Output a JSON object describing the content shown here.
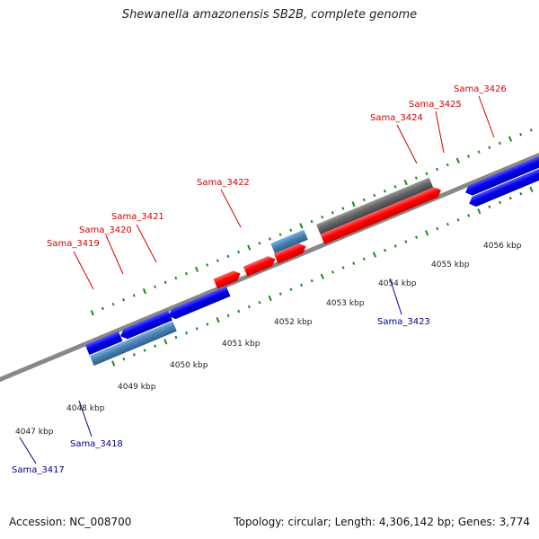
{
  "title": "Shewanella amazonensis SB2B, complete genome",
  "footer": {
    "accession": "Accession: NC_008700",
    "summary": "Topology: circular; Length: 4,306,142 bp; Genes: 3,774"
  },
  "colors": {
    "forward_cds": "#ff0000",
    "reverse_cds": "#0000ee",
    "trna": "#4682b4",
    "gray_feature": "#666666",
    "rrna": "#33cc33",
    "backbone": "#888888",
    "ticks": "#1a8a1a",
    "forward_label": "#d40000",
    "reverse_label": "#00008b"
  },
  "scale_labels": [
    "4047 kbp",
    "4048 kbp",
    "4049 kbp",
    "4050 kbp",
    "4051 kbp",
    "4052 kbp",
    "4053 kbp",
    "4054 kbp",
    "4055 kbp",
    "4056 kbp"
  ],
  "forward_labels": [
    "Sama_3419",
    "Sama_3420",
    "Sama_3421",
    "Sama_3422",
    "Sama_3424",
    "Sama_3425",
    "Sama_3426"
  ],
  "reverse_labels": [
    "Sama_3417",
    "Sama_3418",
    "Sama_3423"
  ]
}
